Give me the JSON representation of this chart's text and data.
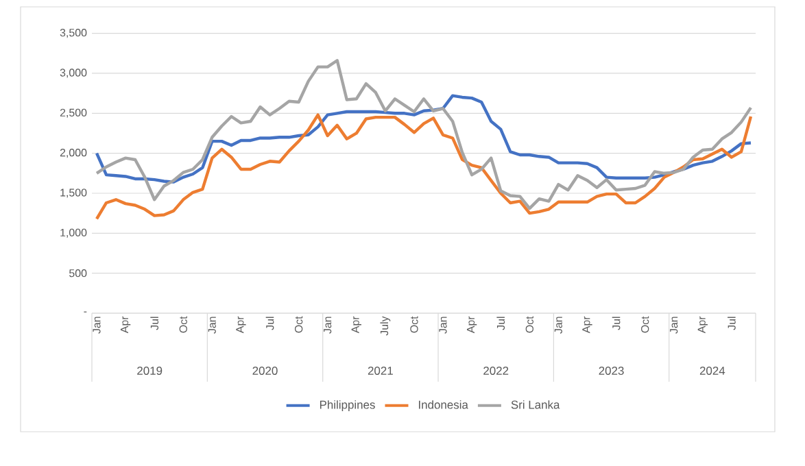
{
  "chart_data": {
    "type": "line",
    "categories": [
      "Jan",
      null,
      null,
      "Apr",
      null,
      null,
      "Jul",
      null,
      null,
      "Oct",
      null,
      null,
      "Jan",
      null,
      null,
      "Apr",
      null,
      null,
      "Jul",
      null,
      null,
      "Oct",
      null,
      null,
      "Jan",
      null,
      null,
      "Apr",
      null,
      null,
      "July",
      null,
      null,
      "Oct",
      null,
      null,
      "Jan",
      null,
      null,
      "Apr",
      null,
      null,
      "Jul",
      null,
      null,
      "Oct",
      null,
      null,
      "Jan",
      null,
      null,
      "Apr",
      null,
      null,
      "Jul",
      null,
      null,
      "Oct",
      null,
      null,
      "Jan",
      null,
      null,
      "Apr",
      null,
      null,
      "Jul",
      null,
      null
    ],
    "series": [
      {
        "name": "Philippines",
        "color": "#4472c4",
        "values": [
          2000,
          1730,
          1720,
          1710,
          1680,
          1680,
          1670,
          1650,
          1640,
          1700,
          1740,
          1820,
          2150,
          2150,
          2100,
          2160,
          2160,
          2190,
          2190,
          2200,
          2200,
          2220,
          2230,
          2330,
          2480,
          2500,
          2520,
          2520,
          2520,
          2520,
          2510,
          2500,
          2500,
          2480,
          2530,
          2540,
          2560,
          2720,
          2700,
          2690,
          2640,
          2400,
          2300,
          2020,
          1980,
          1980,
          1960,
          1950,
          1880,
          1880,
          1880,
          1870,
          1820,
          1700,
          1690,
          1690,
          1690,
          1690,
          1700,
          1730,
          1770,
          1800,
          1850,
          1880,
          1900,
          1960,
          2030,
          2120,
          2130
        ]
      },
      {
        "name": "Indonesia",
        "color": "#ed7d31",
        "values": [
          1180,
          1380,
          1420,
          1370,
          1350,
          1300,
          1220,
          1230,
          1280,
          1420,
          1510,
          1550,
          1940,
          2050,
          1950,
          1800,
          1800,
          1860,
          1900,
          1890,
          2030,
          2150,
          2290,
          2480,
          2220,
          2350,
          2180,
          2250,
          2430,
          2450,
          2450,
          2450,
          2360,
          2260,
          2370,
          2440,
          2230,
          2190,
          1920,
          1850,
          1820,
          1660,
          1500,
          1380,
          1400,
          1250,
          1270,
          1300,
          1390,
          1390,
          1390,
          1390,
          1460,
          1490,
          1490,
          1380,
          1380,
          1460,
          1560,
          1700,
          1760,
          1830,
          1920,
          1930,
          1990,
          2050,
          1950,
          2020,
          2460
        ]
      },
      {
        "name": "Sri Lanka",
        "color": "#a5a5a5",
        "values": [
          1750,
          1830,
          1890,
          1940,
          1920,
          1700,
          1420,
          1590,
          1660,
          1760,
          1800,
          1920,
          2200,
          2340,
          2460,
          2380,
          2400,
          2580,
          2480,
          2560,
          2650,
          2640,
          2900,
          3080,
          3080,
          3160,
          2670,
          2680,
          2870,
          2760,
          2530,
          2680,
          2600,
          2520,
          2680,
          2530,
          2560,
          2400,
          2010,
          1730,
          1800,
          1940,
          1530,
          1470,
          1460,
          1310,
          1430,
          1400,
          1610,
          1540,
          1720,
          1660,
          1570,
          1670,
          1540,
          1550,
          1560,
          1600,
          1770,
          1750,
          1760,
          1800,
          1950,
          2040,
          2050,
          2180,
          2260,
          2390,
          2570
        ]
      }
    ],
    "ylim": [
      0,
      3500
    ],
    "yticks": [
      {
        "value": 0,
        "label": "-"
      },
      {
        "value": 500,
        "label": "500"
      },
      {
        "value": 1000,
        "label": "1,000"
      },
      {
        "value": 1500,
        "label": "1,500"
      },
      {
        "value": 2000,
        "label": "2,000"
      },
      {
        "value": 2500,
        "label": "2,500"
      },
      {
        "value": 3000,
        "label": "3,000"
      },
      {
        "value": 3500,
        "label": "3,500"
      }
    ],
    "annotations": [
      "2019",
      "2020",
      "2021",
      "2022",
      "2023",
      "2024"
    ],
    "grid": "y",
    "legend": "bottom",
    "line_style": "solid",
    "marker": "none"
  }
}
